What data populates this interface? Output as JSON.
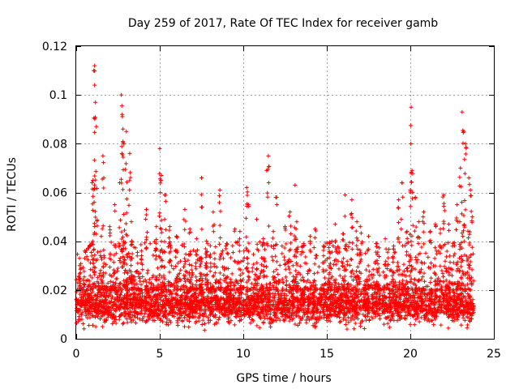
{
  "chart_data": {
    "type": "scatter",
    "title": "Day 259 of 2017, Rate Of TEC Index for receiver gamb",
    "xlabel": "GPS time / hours",
    "ylabel": "ROTI / TECUs",
    "xlim": [
      0,
      25
    ],
    "ylim": [
      0,
      0.12
    ],
    "xticks": [
      0,
      5,
      10,
      15,
      20,
      25
    ],
    "xtick_labels": [
      "0",
      "5",
      "10",
      "15",
      "20",
      "25"
    ],
    "yticks": [
      0,
      0.02,
      0.04,
      0.06,
      0.08,
      0.1,
      0.12
    ],
    "ytick_labels": [
      "0",
      "0.02",
      "0.04",
      "0.06",
      "0.08",
      "0.1",
      "0.12"
    ],
    "grid": true,
    "marker": "plus",
    "color": "#ff0000",
    "series": [
      {
        "name": "ROTI",
        "base_band": {
          "x_range": [
            0,
            23.8
          ],
          "y_range": [
            0.003,
            0.025
          ]
        },
        "x": [
          0.2,
          0.5,
          0.8,
          1.0,
          1.05,
          1.1,
          1.1,
          1.15,
          1.2,
          1.5,
          1.6,
          1.65,
          2.0,
          2.3,
          2.6,
          2.7,
          2.75,
          2.8,
          2.85,
          3.0,
          3.2,
          3.3,
          3.9,
          4.2,
          4.8,
          5.0,
          5.1,
          5.3,
          5.6,
          6.0,
          6.5,
          6.8,
          7.2,
          7.5,
          7.8,
          8.2,
          8.6,
          9.0,
          9.5,
          9.8,
          10.2,
          10.3,
          10.8,
          11.2,
          11.4,
          11.5,
          11.8,
          12.0,
          12.5,
          12.8,
          13.1,
          13.2,
          13.6,
          14.0,
          14.3,
          14.8,
          15.2,
          15.5,
          16.0,
          16.1,
          16.5,
          16.8,
          17.0,
          17.5,
          18.0,
          18.5,
          19.0,
          19.3,
          19.5,
          19.8,
          20.0,
          20.05,
          20.1,
          20.3,
          20.5,
          20.8,
          21.2,
          21.5,
          21.8,
          22.0,
          22.3,
          22.8,
          23.0,
          23.1,
          23.2,
          23.3,
          23.5,
          23.6,
          23.7
        ],
        "y": [
          0.03,
          0.036,
          0.038,
          0.065,
          0.11,
          0.112,
          0.104,
          0.097,
          0.087,
          0.042,
          0.075,
          0.066,
          0.046,
          0.055,
          0.064,
          0.1,
          0.092,
          0.086,
          0.08,
          0.085,
          0.076,
          0.048,
          0.036,
          0.053,
          0.046,
          0.078,
          0.067,
          0.059,
          0.046,
          0.042,
          0.053,
          0.045,
          0.041,
          0.066,
          0.04,
          0.052,
          0.061,
          0.039,
          0.045,
          0.044,
          0.062,
          0.055,
          0.049,
          0.041,
          0.069,
          0.075,
          0.044,
          0.058,
          0.046,
          0.052,
          0.063,
          0.048,
          0.039,
          0.042,
          0.045,
          0.038,
          0.035,
          0.047,
          0.043,
          0.059,
          0.057,
          0.048,
          0.046,
          0.042,
          0.039,
          0.041,
          0.038,
          0.057,
          0.064,
          0.044,
          0.061,
          0.095,
          0.069,
          0.058,
          0.048,
          0.052,
          0.044,
          0.047,
          0.045,
          0.059,
          0.047,
          0.055,
          0.07,
          0.093,
          0.085,
          0.08,
          0.066,
          0.061,
          0.05
        ]
      }
    ]
  }
}
